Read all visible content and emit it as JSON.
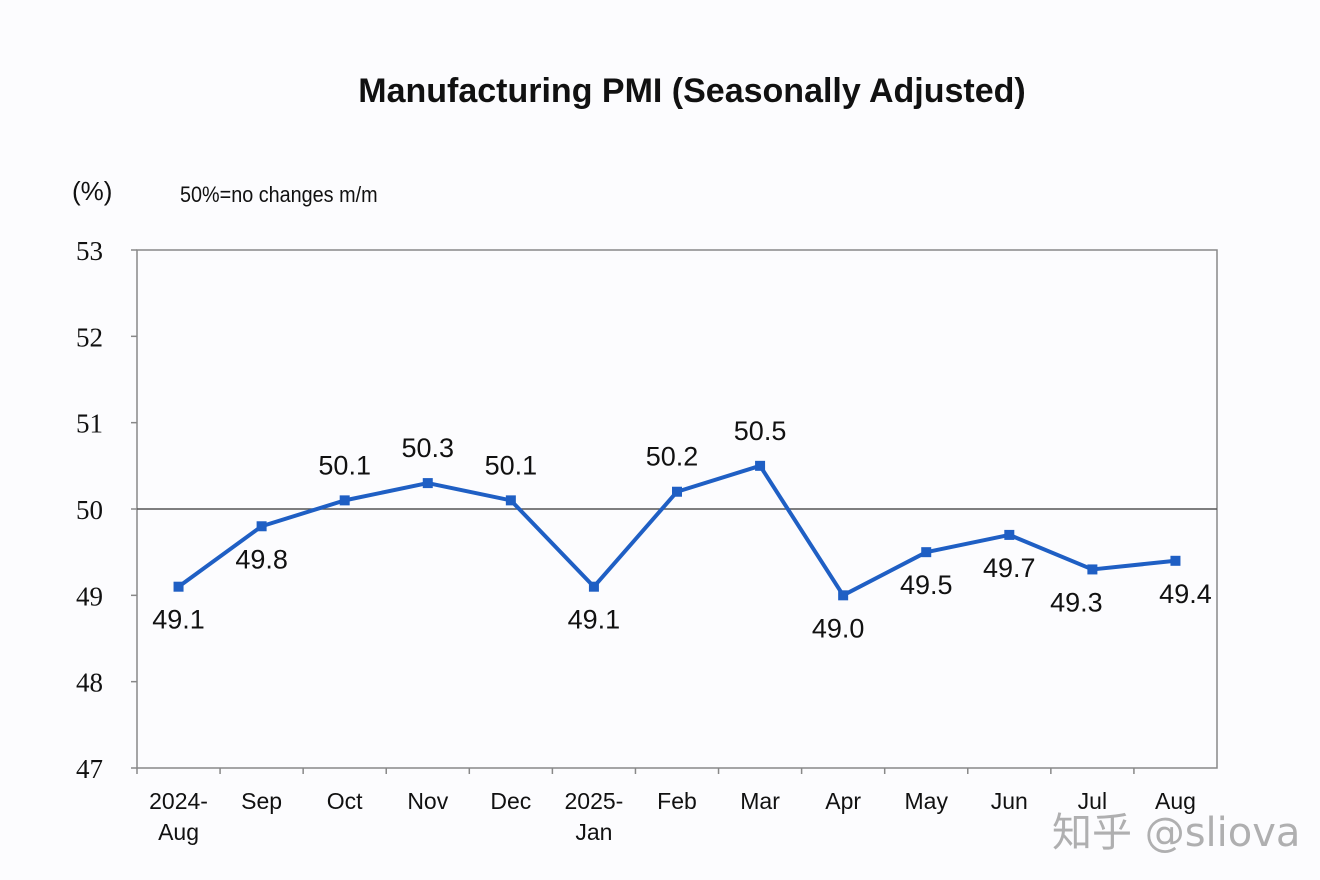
{
  "chart_data": {
    "type": "line",
    "title": "Manufacturing PMI (Seasonally Adjusted)",
    "ylabel": "(%)",
    "annotation": "50%=no changes m/m",
    "categories": [
      [
        "2024-",
        "Aug"
      ],
      [
        "Sep"
      ],
      [
        "Oct"
      ],
      [
        "Nov"
      ],
      [
        "Dec"
      ],
      [
        "2025-",
        "Jan"
      ],
      [
        "Feb"
      ],
      [
        "Mar"
      ],
      [
        "Apr"
      ],
      [
        "May"
      ],
      [
        "Jun"
      ],
      [
        "Jul"
      ],
      [
        "Aug"
      ]
    ],
    "values": [
      49.1,
      49.8,
      50.1,
      50.3,
      50.1,
      49.1,
      50.2,
      50.5,
      49.0,
      49.5,
      49.7,
      49.3,
      49.4
    ],
    "data_labels": [
      "49.1",
      "49.8",
      "50.1",
      "50.3",
      "50.1",
      "49.1",
      "50.2",
      "50.5",
      "49.0",
      "49.5",
      "49.7",
      "49.3",
      "49.4"
    ],
    "ylim": [
      47,
      53
    ],
    "yticks": [
      "47",
      "48",
      "49",
      "50",
      "51",
      "52",
      "53"
    ],
    "reference_line": 50,
    "grid": false,
    "line_color": "#1f5fc4",
    "axis_color": "#888888"
  },
  "watermark": "知乎 @sliova"
}
